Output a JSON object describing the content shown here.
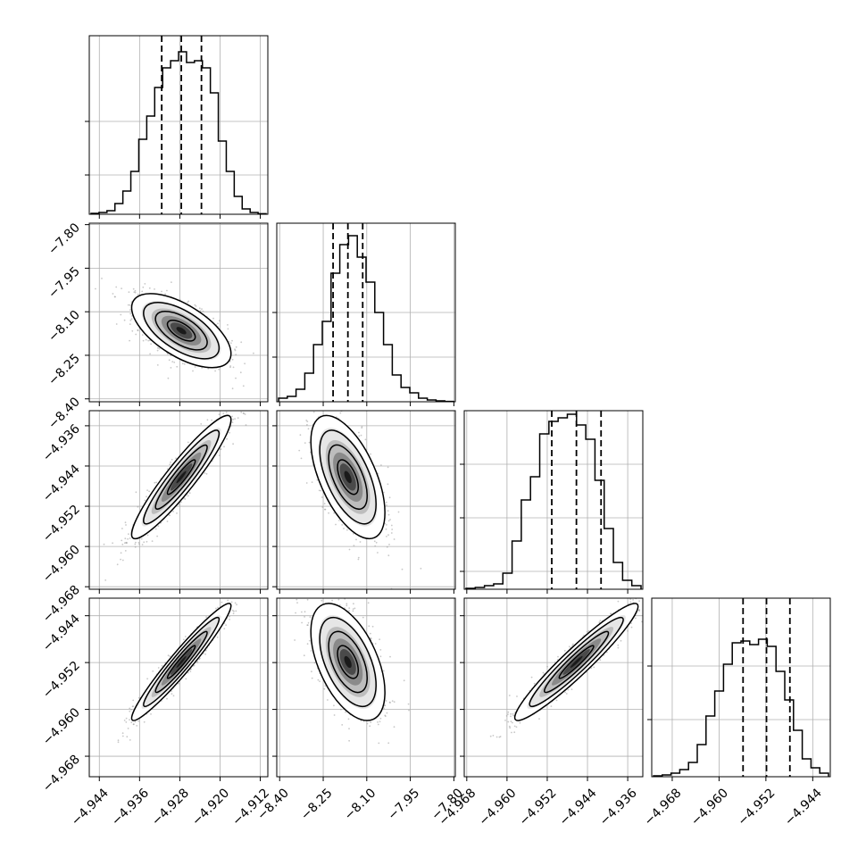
{
  "chart_data": {
    "type": "corner",
    "title": "",
    "parameters": [
      {
        "label": "",
        "ticks": [
          "−4.944",
          "−4.936",
          "−4.928",
          "−4.920",
          "−4.912"
        ],
        "tick_values": [
          -4.944,
          -4.936,
          -4.928,
          -4.92,
          -4.912
        ],
        "range": [
          -4.946,
          -4.9105
        ]
      },
      {
        "label": "",
        "ticks": [
          "−8.40",
          "−8.25",
          "−8.10",
          "−7.95",
          "−7.80"
        ],
        "tick_values": [
          -8.4,
          -8.25,
          -8.1,
          -7.95,
          -7.8
        ],
        "range": [
          -8.41,
          -7.795
        ]
      },
      {
        "label": "",
        "ticks": [
          "−4.968",
          "−4.960",
          "−4.952",
          "−4.944",
          "−4.936"
        ],
        "tick_values": [
          -4.968,
          -4.96,
          -4.952,
          -4.944,
          -4.936
        ],
        "range": [
          -4.9685,
          -4.933
        ]
      },
      {
        "label": "",
        "ticks": [
          "−4.968",
          "−4.960",
          "−4.952",
          "−4.944"
        ],
        "tick_values": [
          -4.968,
          -4.96,
          -4.952,
          -4.944
        ],
        "range": [
          -4.9715,
          -4.941
        ]
      }
    ],
    "row_axis_ticks": [
      null,
      {
        "ticks": [
          "−7.80",
          "−7.95",
          "−8.10",
          "−8.25",
          "−8.40"
        ],
        "tick_values": [
          -7.8,
          -7.95,
          -8.1,
          -8.25,
          -8.4
        ]
      },
      {
        "ticks": [
          "−4.936",
          "−4.944",
          "−4.952",
          "−4.960",
          "−4.968"
        ],
        "tick_values": [
          -4.936,
          -4.944,
          -4.952,
          -4.96,
          -4.968
        ]
      },
      {
        "ticks": [
          "−4.944",
          "−4.952",
          "−4.960",
          "−4.968"
        ],
        "tick_values": [
          -4.944,
          -4.952,
          -4.96,
          -4.968
        ]
      }
    ],
    "quantiles": [
      [
        -4.9316,
        -4.9277,
        -4.9237
      ],
      [
        -8.216,
        -8.165,
        -8.114
      ],
      [
        -4.9511,
        -4.9462,
        -4.9413
      ],
      [
        -4.9559,
        -4.9519,
        -4.9479
      ]
    ],
    "histograms": [
      [
        0.005,
        0.01,
        0.02,
        0.06,
        0.13,
        0.24,
        0.42,
        0.55,
        0.71,
        0.82,
        0.86,
        0.91,
        0.85,
        0.86,
        0.82,
        0.68,
        0.41,
        0.24,
        0.1,
        0.03,
        0.01,
        0.003
      ],
      [
        0.02,
        0.03,
        0.07,
        0.16,
        0.32,
        0.45,
        0.72,
        0.88,
        0.93,
        0.81,
        0.67,
        0.5,
        0.32,
        0.15,
        0.08,
        0.05,
        0.02,
        0.01,
        0.005,
        0.002
      ],
      [
        0.005,
        0.01,
        0.02,
        0.03,
        0.09,
        0.27,
        0.5,
        0.63,
        0.87,
        0.94,
        0.96,
        0.98,
        0.92,
        0.84,
        0.61,
        0.34,
        0.15,
        0.05,
        0.02
      ],
      [
        0.005,
        0.01,
        0.02,
        0.04,
        0.08,
        0.18,
        0.34,
        0.48,
        0.63,
        0.75,
        0.76,
        0.74,
        0.77,
        0.73,
        0.59,
        0.43,
        0.26,
        0.1,
        0.05,
        0.02
      ]
    ],
    "hist_grid_levels": [
      [
        0.52,
        0.22
      ],
      [
        0.5,
        0.25
      ],
      [
        0.7,
        0.4,
        0.1
      ],
      [
        0.62,
        0.32
      ]
    ],
    "correlations": [
      [
        1.0,
        -0.62,
        0.93,
        0.96
      ],
      [
        -0.62,
        1.0,
        -0.58,
        -0.52
      ],
      [
        0.93,
        -0.58,
        1.0,
        0.95
      ],
      [
        0.96,
        -0.52,
        0.95,
        1.0
      ]
    ],
    "grid": true,
    "colors": {
      "line": "#000000",
      "grid": "#b0b0b0",
      "scatter": "#9a9a9a"
    }
  }
}
